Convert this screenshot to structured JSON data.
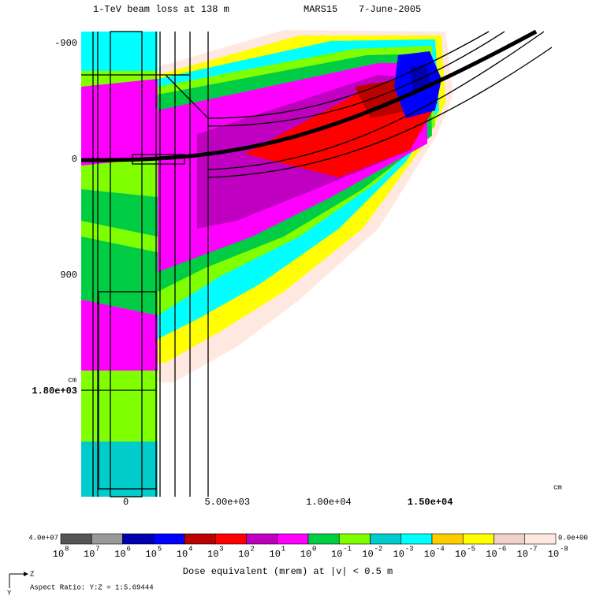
{
  "chart_data": {
    "type": "heatmap",
    "title": "1-TeV beam loss at 138 m",
    "code": "MARS15",
    "date": "7-June-2005",
    "xlabel": "cm",
    "ylabel": "cm",
    "xlim": [
      -2200,
      21000
    ],
    "ylim": [
      -990,
      2620
    ],
    "xticks": [
      0,
      {
        "value": 5000,
        "label": "5.00e+03"
      },
      {
        "value": 10000,
        "label": "1.00e+04"
      },
      {
        "value": 15000,
        "label": "1.50e+04"
      }
    ],
    "yticks": [
      -900,
      0,
      900,
      {
        "value": 1800,
        "label": "1.80e+03"
      }
    ],
    "colorbar": {
      "title": "Dose equivalent (mrem) at |v| < 0.5 m",
      "max_label": "4.0e+07",
      "min_label": "0.0e+00",
      "colors": [
        "#555555",
        "#999999",
        "#0000b0",
        "#0000ff",
        "#bb0000",
        "#ff0000",
        "#c000c0",
        "#ff00ff",
        "#00cc44",
        "#80ff00",
        "#00cccc",
        "#00ffff",
        "#ffcc00",
        "#ffff00",
        "#f0d0c8",
        "#ffe8e0"
      ],
      "ticks": [
        {
          "value": 100000000,
          "label": "10",
          "exponent": "8"
        },
        {
          "value": 10000000,
          "label": "10",
          "exponent": "7"
        },
        {
          "value": 1000000,
          "label": "10",
          "exponent": "6"
        },
        {
          "value": 100000,
          "label": "10",
          "exponent": "5"
        },
        {
          "value": 10000,
          "label": "10",
          "exponent": "4"
        },
        {
          "value": 1000,
          "label": "10",
          "exponent": "3"
        },
        {
          "value": 100,
          "label": "10",
          "exponent": "2"
        },
        {
          "value": 10,
          "label": "10",
          "exponent": "1"
        },
        {
          "value": 1,
          "label": "10",
          "exponent": "0"
        },
        {
          "value": 0.1,
          "label": "10",
          "exponent": "-1"
        },
        {
          "value": 0.01,
          "label": "10",
          "exponent": "-2"
        },
        {
          "value": 0.001,
          "label": "10",
          "exponent": "-3"
        },
        {
          "value": 0.0001,
          "label": "10",
          "exponent": "-4"
        },
        {
          "value": 1e-05,
          "label": "10",
          "exponent": "-5"
        },
        {
          "value": 1e-06,
          "label": "10",
          "exponent": "-6"
        },
        {
          "value": 1e-07,
          "label": "10",
          "exponent": "-7"
        },
        {
          "value": 1e-08,
          "label": "10",
          "exponent": "-8"
        }
      ]
    },
    "aspect_ratio": "Aspect Ratio: Y:Z = 1:5.69444",
    "axis_icon": {
      "horizontal": "Z",
      "vertical": "Y"
    }
  }
}
